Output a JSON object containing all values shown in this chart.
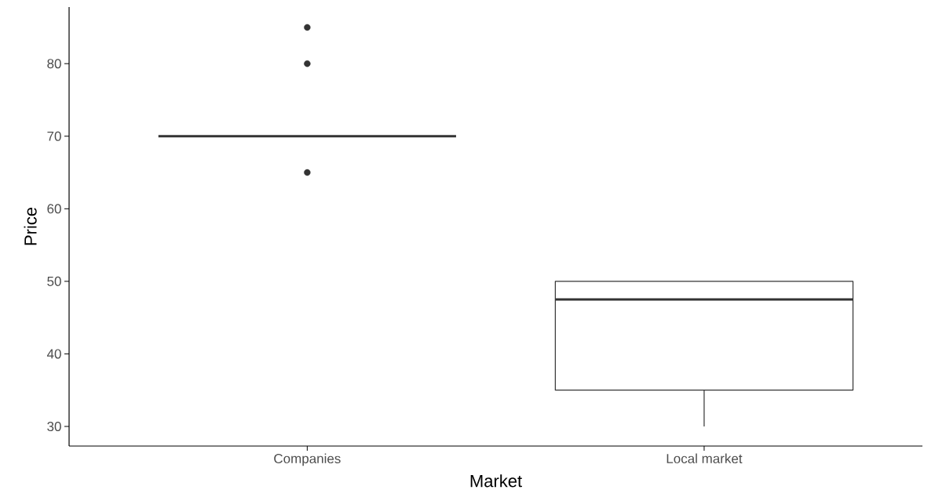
{
  "chart_data": {
    "type": "box",
    "xlabel": "Market",
    "ylabel": "Price",
    "categories": [
      "Companies",
      "Local market"
    ],
    "boxes": [
      {
        "low": 70,
        "q1": 70,
        "median": 70,
        "q3": 70,
        "high": 70,
        "outliers": [
          65,
          80,
          85
        ]
      },
      {
        "low": 30,
        "q1": 35,
        "median": 47.5,
        "q3": 50,
        "high": 50
      }
    ],
    "color": "#333333",
    "ylim": [
      27.3,
      87.8
    ],
    "yticks": [
      30,
      40,
      50,
      60,
      70,
      80
    ],
    "grid": false
  }
}
